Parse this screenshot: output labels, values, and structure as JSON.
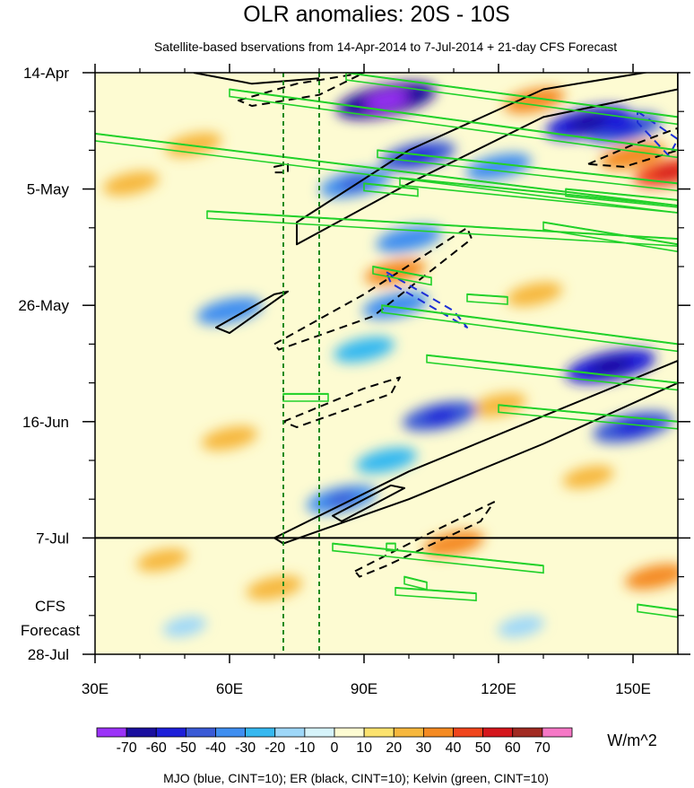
{
  "chart_data": {
    "type": "heatmap",
    "title": "OLR anomalies: 20S - 10S",
    "subtitle": "Satellite-based bservations from 14-Apr-2014 to 7-Jul-2014 + 21-day CFS Forecast",
    "x_axis": {
      "range": [
        30,
        160
      ],
      "ticks": [
        {
          "value": 30,
          "label": "30E"
        },
        {
          "value": 60,
          "label": "60E"
        },
        {
          "value": 90,
          "label": "90E"
        },
        {
          "value": 120,
          "label": "120E"
        },
        {
          "value": 150,
          "label": "150E"
        }
      ]
    },
    "y_axis": {
      "range_days": [
        0,
        105
      ],
      "ticks": [
        {
          "day": 0,
          "label": "14-Apr"
        },
        {
          "day": 21,
          "label": "5-May"
        },
        {
          "day": 42,
          "label": "26-May"
        },
        {
          "day": 63,
          "label": "16-Jun"
        },
        {
          "day": 84,
          "label": "7-Jul"
        },
        {
          "day": 105,
          "label": "28-Jul"
        }
      ],
      "forecast_label_line1": "CFS",
      "forecast_label_line2": "Forecast"
    },
    "observation_end_day": 84,
    "reference_lon_lines": [
      72,
      80
    ],
    "colorbar": {
      "labels": [
        "-70",
        "-60",
        "-50",
        "-40",
        "-30",
        "-20",
        "-10",
        "0",
        "10",
        "20",
        "30",
        "40",
        "50",
        "60",
        "70"
      ],
      "colors": [
        "#9b33f7",
        "#1a0f9e",
        "#1d1fd8",
        "#3a5ad6",
        "#3f8ef0",
        "#36b8f0",
        "#9ed7f8",
        "#d6f3fa",
        "#fdfbd2",
        "#fbe26e",
        "#f6b73d",
        "#f48a22",
        "#f0451c",
        "#d4161c",
        "#a12a22",
        "#f578c6"
      ],
      "units": "W/m^2"
    },
    "field_blobs": [
      {
        "lon": 95,
        "day": 5,
        "value": -70
      },
      {
        "lon": 97,
        "day": 4.5,
        "value": -50
      },
      {
        "lon": 140,
        "day": 9,
        "value": -55
      },
      {
        "lon": 148,
        "day": 10,
        "value": -45
      },
      {
        "lon": 102,
        "day": 15,
        "value": -45
      },
      {
        "lon": 120,
        "day": 17,
        "value": -35
      },
      {
        "lon": 88,
        "day": 20,
        "value": -40
      },
      {
        "lon": 100,
        "day": 30,
        "value": -35
      },
      {
        "lon": 60,
        "day": 43,
        "value": -35
      },
      {
        "lon": 97,
        "day": 42,
        "value": -35
      },
      {
        "lon": 90,
        "day": 50,
        "value": -30
      },
      {
        "lon": 145,
        "day": 53,
        "value": -60
      },
      {
        "lon": 107,
        "day": 62,
        "value": -45
      },
      {
        "lon": 150,
        "day": 64,
        "value": -50
      },
      {
        "lon": 85,
        "day": 77,
        "value": -40
      },
      {
        "lon": 95,
        "day": 70,
        "value": -30
      },
      {
        "lon": 128,
        "day": 5,
        "value": 30
      },
      {
        "lon": 150,
        "day": 15,
        "value": 35
      },
      {
        "lon": 158,
        "day": 18,
        "value": 40
      },
      {
        "lon": 52,
        "day": 13,
        "value": 25
      },
      {
        "lon": 38,
        "day": 20,
        "value": 25
      },
      {
        "lon": 97,
        "day": 36,
        "value": 30
      },
      {
        "lon": 128,
        "day": 40,
        "value": 25
      },
      {
        "lon": 120,
        "day": 60,
        "value": 25
      },
      {
        "lon": 60,
        "day": 66,
        "value": 25
      },
      {
        "lon": 110,
        "day": 85,
        "value": 30
      },
      {
        "lon": 70,
        "day": 93,
        "value": 25
      },
      {
        "lon": 155,
        "day": 91,
        "value": 30
      },
      {
        "lon": 140,
        "day": 73,
        "value": 20
      },
      {
        "lon": 45,
        "day": 88,
        "value": 20
      },
      {
        "lon": 125,
        "day": 100,
        "value": -15
      },
      {
        "lon": 50,
        "day": 100,
        "value": -12
      }
    ],
    "contours": [
      {
        "type": "ER",
        "color": "black",
        "sign": "positive",
        "path": [
          [
            52,
            0
          ],
          [
            65,
            2
          ],
          [
            80,
            1
          ]
        ]
      },
      {
        "type": "ER",
        "color": "black",
        "sign": "positive",
        "path": [
          [
            75,
            27
          ],
          [
            100,
            14
          ],
          [
            130,
            3
          ],
          [
            160,
            -1
          ],
          [
            160,
            3
          ],
          [
            130,
            8
          ],
          [
            100,
            20
          ],
          [
            75,
            31
          ]
        ]
      },
      {
        "type": "ER",
        "color": "black",
        "sign": "positive",
        "path": [
          [
            57,
            46
          ],
          [
            70,
            40
          ],
          [
            73,
            39.5
          ],
          [
            60,
            47
          ]
        ]
      },
      {
        "type": "ER",
        "color": "black",
        "sign": "positive",
        "path": [
          [
            70,
            84
          ],
          [
            100,
            72
          ],
          [
            130,
            62
          ],
          [
            160,
            52
          ],
          [
            160,
            56
          ],
          [
            130,
            67
          ],
          [
            100,
            77
          ],
          [
            72,
            85
          ]
        ]
      },
      {
        "type": "ER",
        "color": "black",
        "sign": "positive",
        "path": [
          [
            83,
            80
          ],
          [
            96,
            74.5
          ],
          [
            99,
            75
          ],
          [
            85,
            81
          ]
        ]
      },
      {
        "type": "ER",
        "color": "black",
        "sign": "negative",
        "path": [
          [
            62,
            5
          ],
          [
            75,
            2
          ],
          [
            90,
            0
          ],
          [
            80,
            4
          ],
          [
            65,
            6
          ]
        ]
      },
      {
        "type": "ER",
        "color": "black",
        "sign": "negative",
        "path": [
          [
            70,
            49
          ],
          [
            90,
            40
          ],
          [
            113,
            28
          ],
          [
            114,
            30
          ],
          [
            92,
            44
          ],
          [
            71,
            50
          ]
        ]
      },
      {
        "type": "ER",
        "color": "black",
        "sign": "negative",
        "path": [
          [
            72,
            63
          ],
          [
            90,
            57
          ],
          [
            98,
            55
          ],
          [
            96,
            58
          ],
          [
            75,
            64
          ]
        ]
      },
      {
        "type": "ER",
        "color": "black",
        "sign": "negative",
        "path": [
          [
            88,
            90
          ],
          [
            105,
            83
          ],
          [
            119,
            77.5
          ],
          [
            116,
            81
          ],
          [
            95,
            89
          ],
          [
            89,
            91
          ]
        ]
      },
      {
        "type": "ER",
        "color": "black",
        "sign": "negative",
        "path": [
          [
            140,
            16.5
          ],
          [
            150,
            13
          ],
          [
            160,
            10
          ],
          [
            160,
            14
          ],
          [
            148,
            17
          ]
        ]
      },
      {
        "type": "ER",
        "color": "black",
        "sign": "negative",
        "path": [
          [
            70,
            17
          ],
          [
            73,
            16.5
          ],
          [
            73,
            18
          ],
          [
            70,
            18
          ]
        ]
      },
      {
        "type": "MJO",
        "color": "blue",
        "sign": "negative",
        "path": [
          [
            95,
            36
          ],
          [
            110,
            43
          ],
          [
            113,
            46
          ],
          [
            96,
            38
          ]
        ]
      },
      {
        "type": "MJO",
        "color": "blue",
        "sign": "negative",
        "path": [
          [
            151,
            7
          ],
          [
            160,
            12
          ],
          [
            158,
            15
          ],
          [
            151,
            9
          ]
        ]
      },
      {
        "type": "Kelvin",
        "color": "green",
        "sign": "positive",
        "path": [
          [
            30,
            11
          ],
          [
            160,
            24
          ]
        ]
      },
      {
        "type": "Kelvin",
        "color": "green",
        "sign": "positive",
        "path": [
          [
            60,
            3
          ],
          [
            160,
            14
          ]
        ]
      },
      {
        "type": "Kelvin",
        "color": "green",
        "sign": "positive",
        "path": [
          [
            86,
            0
          ],
          [
            160,
            8
          ]
        ]
      },
      {
        "type": "Kelvin",
        "color": "green",
        "sign": "positive",
        "path": [
          [
            93,
            14
          ],
          [
            160,
            20
          ]
        ]
      },
      {
        "type": "Kelvin",
        "color": "green",
        "sign": "positive",
        "path": [
          [
            98,
            19
          ],
          [
            160,
            24
          ]
        ]
      },
      {
        "type": "Kelvin",
        "color": "green",
        "sign": "positive",
        "path": [
          [
            135,
            21
          ],
          [
            160,
            23
          ]
        ]
      },
      {
        "type": "Kelvin",
        "color": "green",
        "sign": "positive",
        "path": [
          [
            55,
            25
          ],
          [
            160,
            30
          ]
        ]
      },
      {
        "type": "Kelvin",
        "color": "green",
        "sign": "positive",
        "path": [
          [
            90,
            20
          ],
          [
            102,
            21
          ]
        ]
      },
      {
        "type": "Kelvin",
        "color": "green",
        "sign": "positive",
        "path": [
          [
            130,
            27
          ],
          [
            160,
            31
          ]
        ]
      },
      {
        "type": "Kelvin",
        "color": "green",
        "sign": "positive",
        "path": [
          [
            92,
            35
          ],
          [
            105,
            37
          ]
        ]
      },
      {
        "type": "Kelvin",
        "color": "green",
        "sign": "positive",
        "path": [
          [
            94,
            42
          ],
          [
            160,
            49
          ]
        ]
      },
      {
        "type": "Kelvin",
        "color": "green",
        "sign": "positive",
        "path": [
          [
            113,
            40
          ],
          [
            122,
            40.5
          ]
        ]
      },
      {
        "type": "Kelvin",
        "color": "green",
        "sign": "positive",
        "path": [
          [
            104,
            51
          ],
          [
            160,
            56
          ]
        ]
      },
      {
        "type": "Kelvin",
        "color": "green",
        "sign": "positive",
        "path": [
          [
            120,
            60
          ],
          [
            160,
            63
          ]
        ]
      },
      {
        "type": "Kelvin",
        "color": "green",
        "sign": "positive",
        "path": [
          [
            72,
            58
          ],
          [
            82,
            58
          ]
        ]
      },
      {
        "type": "Kelvin",
        "color": "green",
        "sign": "positive",
        "path": [
          [
            83,
            85
          ],
          [
            130,
            89
          ]
        ]
      },
      {
        "type": "Kelvin",
        "color": "green",
        "sign": "positive",
        "path": [
          [
            97,
            93
          ],
          [
            115,
            94
          ]
        ]
      },
      {
        "type": "Kelvin",
        "color": "green",
        "sign": "positive",
        "path": [
          [
            99,
            91
          ],
          [
            104,
            92
          ]
        ]
      },
      {
        "type": "Kelvin",
        "color": "green",
        "sign": "positive",
        "path": [
          [
            95,
            85
          ],
          [
            97,
            85
          ]
        ]
      },
      {
        "type": "Kelvin",
        "color": "green",
        "sign": "positive",
        "path": [
          [
            151,
            96
          ],
          [
            160,
            97
          ]
        ]
      }
    ],
    "caption": "MJO (blue, CINT=10); ER (black, CINT=10); Kelvin (green, CINT=10)"
  }
}
